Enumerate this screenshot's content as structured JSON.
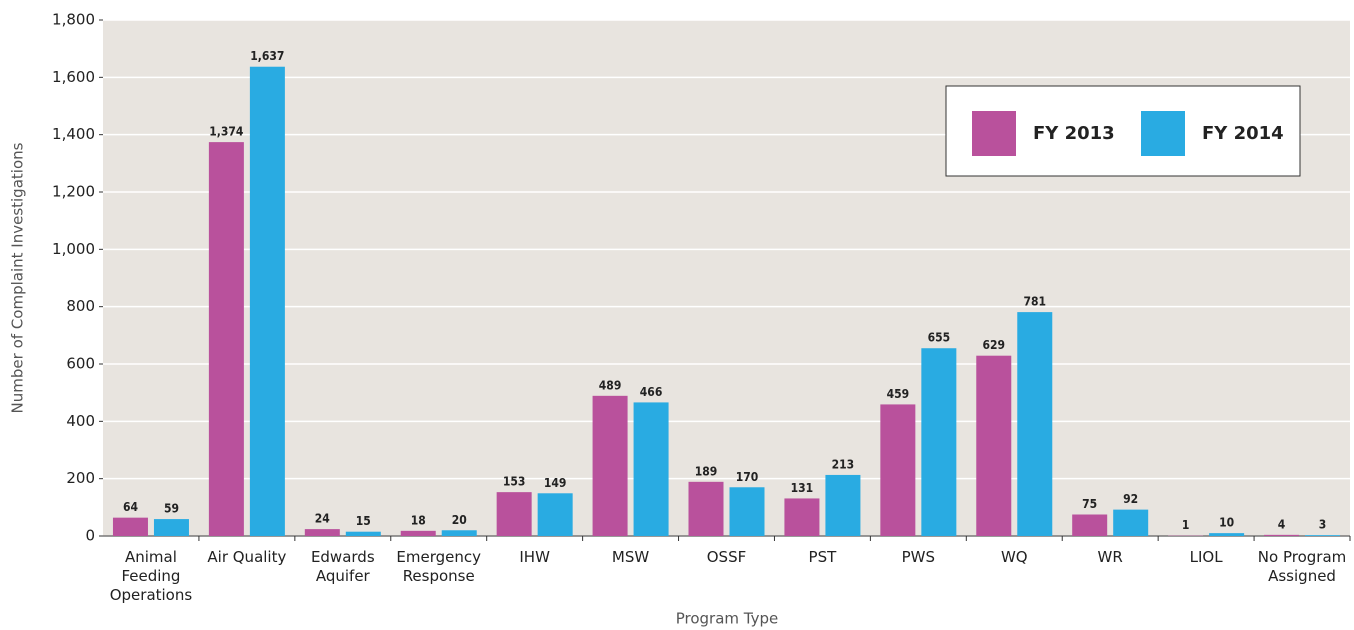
{
  "chart_data": {
    "type": "bar",
    "x_label": "Program Type",
    "y_label": "Number of Complaint Investigations",
    "categories": [
      "Animal Feeding Operations",
      "Air Quality",
      "Edwards Aquifer",
      "Emergency Response",
      "IHW",
      "MSW",
      "OSSF",
      "PST",
      "PWS",
      "WQ",
      "WR",
      "LIOL",
      "No Program Assigned"
    ],
    "series": [
      {
        "name": "FY 2013",
        "color": "#b9519c",
        "values": [
          64,
          1374,
          24,
          18,
          153,
          489,
          189,
          131,
          459,
          629,
          75,
          1,
          4
        ],
        "value_labels": [
          "64",
          "1,374",
          "24",
          "18",
          "153",
          "489",
          "189",
          "131",
          "459",
          "629",
          "75",
          "1",
          "4"
        ]
      },
      {
        "name": "FY 2014",
        "color": "#29abe2",
        "values": [
          59,
          1637,
          15,
          20,
          149,
          466,
          170,
          213,
          655,
          781,
          92,
          10,
          3
        ],
        "value_labels": [
          "59",
          "1,637",
          "15",
          "20",
          "149",
          "466",
          "170",
          "213",
          "655",
          "781",
          "92",
          "10",
          "3"
        ]
      }
    ],
    "ylim": [
      0,
      1800
    ],
    "yticks": [
      0,
      200,
      400,
      600,
      800,
      {
        "value": 1000,
        "label": "1,000"
      },
      {
        "value": 1200,
        "label": "1,200"
      },
      {
        "value": 1400,
        "label": "1,400"
      },
      {
        "value": 1600,
        "label": "1,600"
      },
      {
        "value": 1800,
        "label": "1,800"
      }
    ],
    "grid": true,
    "legend": "upper right"
  }
}
